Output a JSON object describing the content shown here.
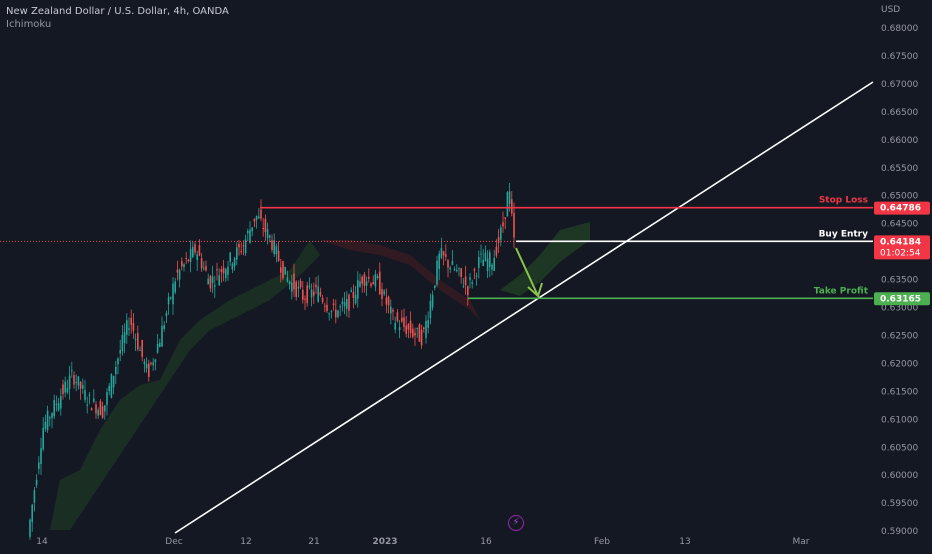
{
  "header": {
    "symbol": "New Zealand Dollar / U.S. Dollar, 4h, OANDA",
    "indicator": "Ichimoku"
  },
  "price_axis": {
    "currency": "USD",
    "labels": [
      "0.68000",
      "0.67500",
      "0.67000",
      "0.66500",
      "0.66000",
      "0.65500",
      "0.65000",
      "0.64500",
      "0.64000",
      "0.63500",
      "0.63000",
      "0.62500",
      "0.62000",
      "0.61500",
      "0.61000",
      "0.60500",
      "0.60000",
      "0.59500",
      "0.59000"
    ]
  },
  "time_axis": {
    "labels": [
      "14",
      "Dec",
      "12",
      "21",
      "2023",
      "16",
      "Feb",
      "13",
      "Mar"
    ]
  },
  "annotations": {
    "stop_loss": {
      "label": "Stop Loss",
      "price": "0.64786",
      "color": "#f23645"
    },
    "buy_entry": {
      "label": "Buy Entry",
      "price": "0.64184",
      "timer": "01:02:54",
      "color": "#ffffff"
    },
    "take_profit": {
      "label": "Take Profit",
      "price": "0.63165",
      "color": "#4caf50"
    }
  },
  "colors": {
    "up_candle": "#26a69a",
    "down_candle": "#ef5350",
    "trendline": "#ffffff",
    "arrow": "#8bc34a",
    "cloud": "#1f3a25"
  },
  "icons": {
    "logo": "bolt-icon"
  },
  "chart_data": {
    "type": "candlestick",
    "ylim": [
      0.589,
      0.6825
    ],
    "series": [
      {
        "name": "",
        "values": []
      }
    ]
  }
}
